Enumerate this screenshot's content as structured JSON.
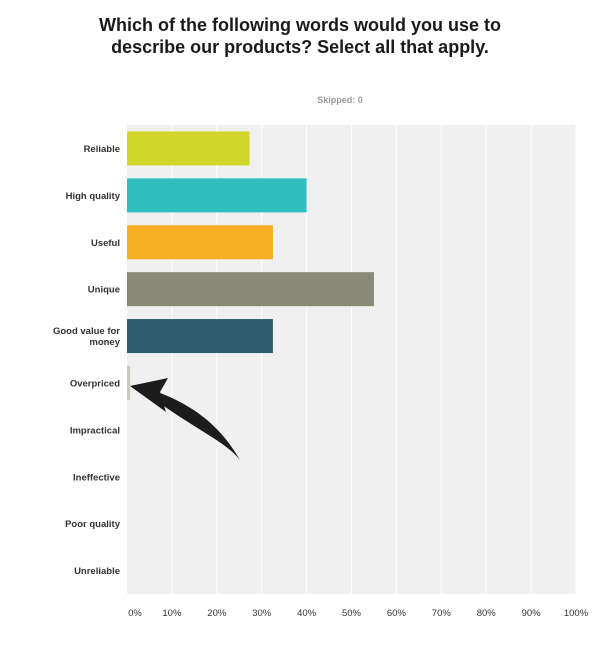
{
  "title": "Which of the following words would you use to describe our products? Select all that apply.",
  "subtitle": "Skipped: 0",
  "chart_data": {
    "type": "bar",
    "orientation": "horizontal",
    "categories": [
      "Reliable",
      "High quality",
      "Useful",
      "Unique",
      "Good value for money",
      "Overpriced",
      "Impractical",
      "Ineffective",
      "Poor quality",
      "Unreliable"
    ],
    "values": [
      27.3,
      40,
      32.5,
      55,
      32.5,
      0.7,
      0,
      0,
      0,
      0
    ],
    "colors": [
      "#d1d62a",
      "#31bec1",
      "#f7ae22",
      "#898a76",
      "#2e5e6b",
      "#cbcbbd",
      "#cbcbbd",
      "#cbcbbd",
      "#cbcbbd",
      "#cbcbbd"
    ],
    "x_ticks": [
      "0%",
      "10%",
      "20%",
      "30%",
      "40%",
      "50%",
      "60%",
      "70%",
      "80%",
      "90%",
      "100%"
    ],
    "xlim": [
      0,
      100
    ],
    "grid": true,
    "annotation": "arrow pointing to Overpriced bar"
  }
}
